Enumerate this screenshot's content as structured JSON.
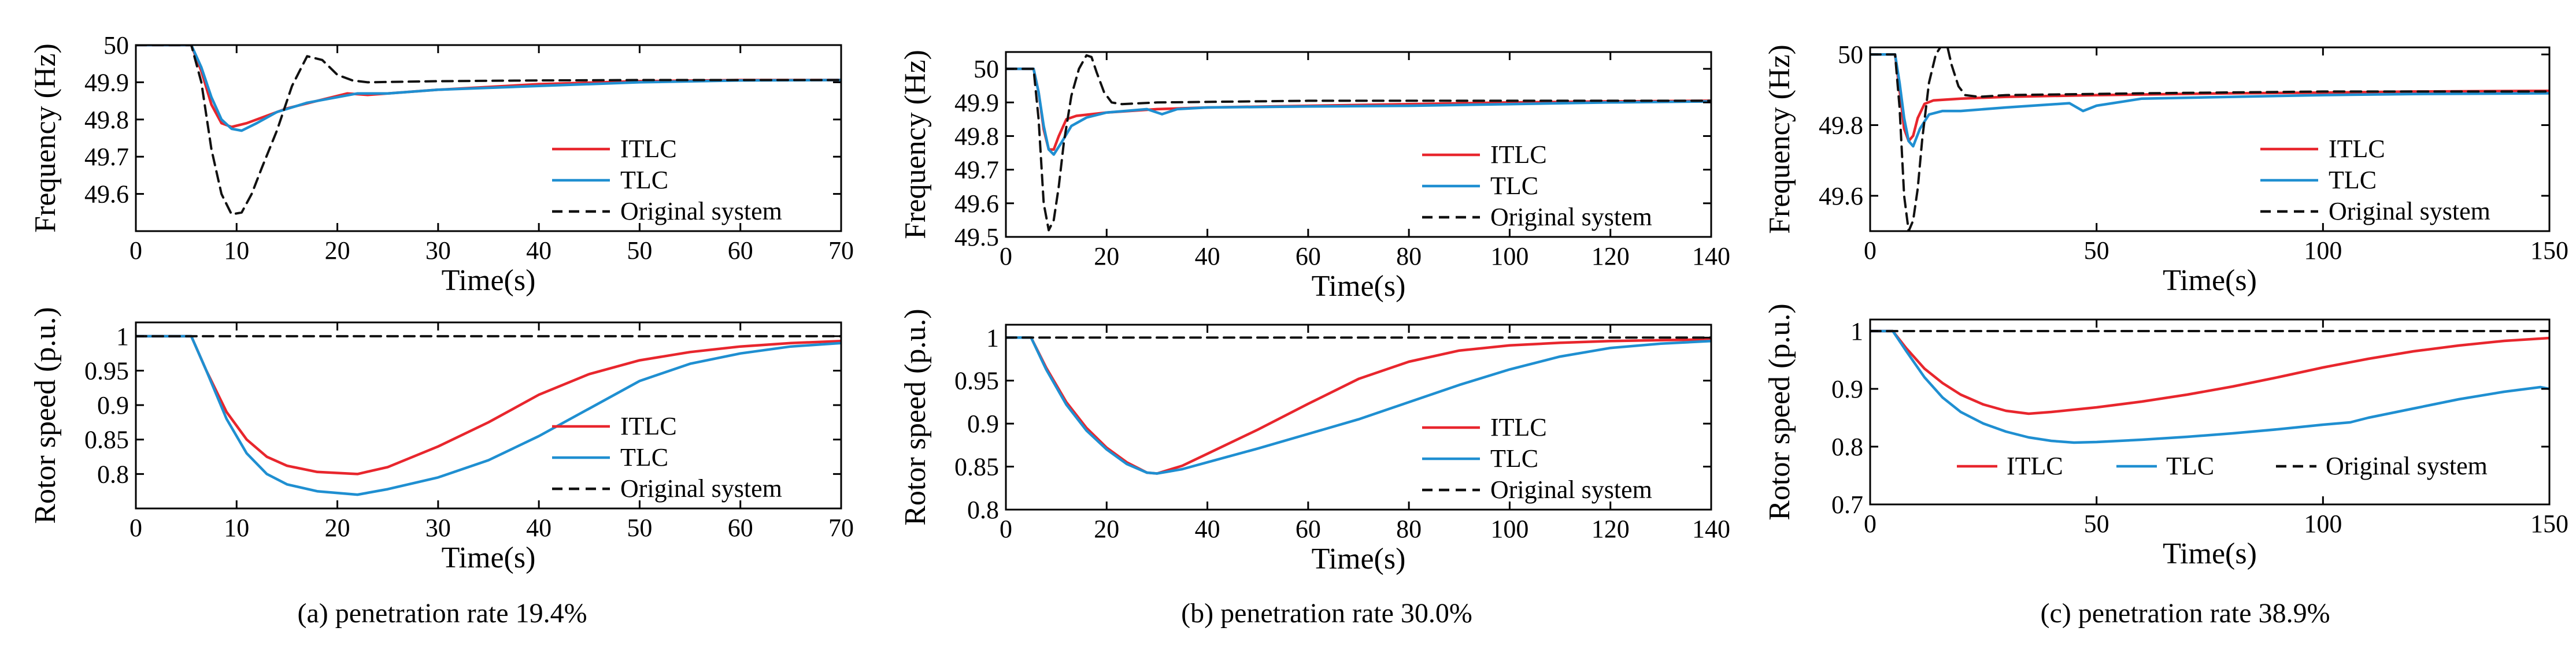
{
  "figure": {
    "captions": [
      "(a) penetration rate 19.4%",
      "(b) penetration rate 30.0%",
      "(c) penetration rate 38.9%"
    ],
    "colors": {
      "ITLC": "#e8262d",
      "TLC": "#1f8fd1",
      "Original system": "#111111"
    }
  },
  "chart_data": [
    {
      "id": "a-frequency",
      "type": "line",
      "xlabel": "Time(s)",
      "ylabel": "Frequency (Hz)",
      "xlim": [
        0,
        70
      ],
      "ylim": [
        49.5,
        50.0
      ],
      "xticks": [
        0,
        10,
        20,
        30,
        40,
        50,
        60,
        70
      ],
      "yticks": [
        49.6,
        49.7,
        49.8,
        49.9,
        50
      ],
      "legend": "right-inside-lower",
      "series": [
        {
          "name": "ITLC",
          "style": "solid",
          "color": "#e8262d",
          "x": [
            0,
            5.5,
            6.5,
            7.5,
            8.5,
            9.5,
            11,
            13,
            15,
            18,
            21,
            23,
            25,
            30,
            40,
            50,
            60,
            70
          ],
          "y": [
            50,
            50,
            49.93,
            49.84,
            49.79,
            49.78,
            49.79,
            49.81,
            49.83,
            49.85,
            49.87,
            49.866,
            49.87,
            49.88,
            49.895,
            49.903,
            49.906,
            49.906
          ]
        },
        {
          "name": "TLC",
          "style": "solid",
          "color": "#1f8fd1",
          "x": [
            0,
            5.5,
            6.5,
            7.5,
            8.5,
            9.5,
            10.5,
            12,
            14,
            17,
            20,
            22,
            25,
            30,
            40,
            50,
            60,
            70
          ],
          "y": [
            50,
            50,
            49.94,
            49.86,
            49.8,
            49.775,
            49.77,
            49.79,
            49.82,
            49.845,
            49.86,
            49.87,
            49.87,
            49.88,
            49.89,
            49.9,
            49.905,
            49.906
          ]
        },
        {
          "name": "Original system",
          "style": "dashed",
          "color": "#111111",
          "x": [
            0,
            5.5,
            6.5,
            7.5,
            8.5,
            9.5,
            10.5,
            11.5,
            12.5,
            14,
            15.5,
            17,
            18.5,
            20,
            21.5,
            23,
            30,
            40,
            50,
            70
          ],
          "y": [
            50,
            50,
            49.9,
            49.72,
            49.6,
            49.545,
            49.55,
            49.6,
            49.67,
            49.77,
            49.89,
            49.97,
            49.96,
            49.92,
            49.905,
            49.9,
            49.903,
            49.905,
            49.906,
            49.906
          ]
        }
      ]
    },
    {
      "id": "a-rotor",
      "type": "line",
      "xlabel": "Time(s)",
      "ylabel": "Rotor speed (p.u.)",
      "xlim": [
        0,
        70
      ],
      "ylim": [
        0.75,
        1.02
      ],
      "xticks": [
        0,
        10,
        20,
        30,
        40,
        50,
        60,
        70
      ],
      "yticks": [
        0.8,
        0.85,
        0.9,
        0.95,
        1
      ],
      "legend": "right-inside-lower",
      "series": [
        {
          "name": "ITLC",
          "style": "solid",
          "color": "#e8262d",
          "x": [
            0,
            5.5,
            7,
            9,
            11,
            13,
            15,
            18,
            22,
            25,
            30,
            35,
            40,
            45,
            50,
            55,
            60,
            65,
            70
          ],
          "y": [
            1,
            1,
            0.95,
            0.89,
            0.85,
            0.825,
            0.812,
            0.803,
            0.8,
            0.81,
            0.84,
            0.875,
            0.915,
            0.945,
            0.965,
            0.977,
            0.985,
            0.99,
            0.993
          ]
        },
        {
          "name": "TLC",
          "style": "solid",
          "color": "#1f8fd1",
          "x": [
            0,
            5.5,
            7,
            9,
            11,
            13,
            15,
            18,
            22,
            25,
            30,
            35,
            40,
            45,
            50,
            55,
            60,
            65,
            70
          ],
          "y": [
            1,
            1,
            0.95,
            0.88,
            0.83,
            0.8,
            0.785,
            0.775,
            0.77,
            0.778,
            0.795,
            0.82,
            0.855,
            0.895,
            0.935,
            0.96,
            0.975,
            0.985,
            0.99
          ]
        },
        {
          "name": "Original system",
          "style": "dashed",
          "color": "#111111",
          "x": [
            0,
            70
          ],
          "y": [
            1,
            1
          ]
        }
      ]
    },
    {
      "id": "b-frequency",
      "type": "line",
      "xlabel": "Time(s)",
      "ylabel": "Frequency (Hz)",
      "xlim": [
        0,
        140
      ],
      "ylim": [
        49.5,
        50.05
      ],
      "xticks": [
        0,
        20,
        40,
        60,
        80,
        100,
        120,
        140
      ],
      "yticks": [
        49.5,
        49.6,
        49.7,
        49.8,
        49.9,
        50
      ],
      "legend": "right-inside-lower",
      "series": [
        {
          "name": "ITLC",
          "style": "solid",
          "color": "#e8262d",
          "x": [
            0,
            5.5,
            6.5,
            7.5,
            8.5,
            9.5,
            10.5,
            12,
            14,
            20,
            30,
            40,
            60,
            80,
            100,
            120,
            140
          ],
          "y": [
            50,
            50,
            49.93,
            49.82,
            49.76,
            49.76,
            49.8,
            49.85,
            49.86,
            49.87,
            49.88,
            49.885,
            49.89,
            49.895,
            49.9,
            49.903,
            49.905
          ]
        },
        {
          "name": "TLC",
          "style": "solid",
          "color": "#1f8fd1",
          "x": [
            0,
            5.5,
            6.5,
            7.5,
            8.5,
            9.5,
            11,
            13,
            16,
            20,
            28,
            31,
            34,
            40,
            60,
            80,
            100,
            120,
            140
          ],
          "y": [
            50,
            50,
            49.93,
            49.83,
            49.76,
            49.745,
            49.78,
            49.83,
            49.855,
            49.87,
            49.88,
            49.865,
            49.88,
            49.885,
            49.888,
            49.89,
            49.895,
            49.9,
            49.903
          ]
        },
        {
          "name": "Original system",
          "style": "dashed",
          "color": "#111111",
          "x": [
            0,
            5.5,
            6.5,
            7.5,
            8.5,
            9.5,
            10.5,
            11.5,
            13,
            14.5,
            16,
            17,
            18,
            19.5,
            21,
            23,
            30,
            60,
            100,
            140
          ],
          "y": [
            50,
            50,
            49.85,
            49.6,
            49.52,
            49.55,
            49.65,
            49.78,
            49.92,
            50.0,
            50.04,
            50.035,
            49.99,
            49.93,
            49.9,
            49.895,
            49.9,
            49.905,
            49.905,
            49.905
          ]
        }
      ]
    },
    {
      "id": "b-rotor",
      "type": "line",
      "xlabel": "Time(s)",
      "ylabel": "Rotor speed (p.u.)",
      "xlim": [
        0,
        140
      ],
      "ylim": [
        0.8,
        1.015
      ],
      "xticks": [
        0,
        20,
        40,
        60,
        80,
        100,
        120,
        140
      ],
      "yticks": [
        0.8,
        0.85,
        0.9,
        0.95,
        1
      ],
      "legend": "right-inside-lower",
      "series": [
        {
          "name": "ITLC",
          "style": "solid",
          "color": "#e8262d",
          "x": [
            0,
            5,
            8,
            12,
            16,
            20,
            24,
            28,
            30,
            35,
            40,
            50,
            60,
            70,
            80,
            90,
            100,
            110,
            120,
            130,
            140
          ],
          "y": [
            1,
            1,
            0.965,
            0.925,
            0.895,
            0.872,
            0.855,
            0.843,
            0.842,
            0.851,
            0.865,
            0.893,
            0.923,
            0.952,
            0.972,
            0.985,
            0.991,
            0.994,
            0.996,
            0.997,
            0.998
          ]
        },
        {
          "name": "TLC",
          "style": "solid",
          "color": "#1f8fd1",
          "x": [
            0,
            5,
            8,
            12,
            16,
            20,
            24,
            28,
            30,
            35,
            40,
            50,
            60,
            70,
            80,
            90,
            100,
            110,
            120,
            130,
            140
          ],
          "y": [
            1,
            1,
            0.963,
            0.922,
            0.892,
            0.87,
            0.853,
            0.843,
            0.842,
            0.847,
            0.855,
            0.871,
            0.888,
            0.905,
            0.925,
            0.945,
            0.963,
            0.978,
            0.988,
            0.993,
            0.996
          ]
        },
        {
          "name": "Original system",
          "style": "dashed",
          "color": "#111111",
          "x": [
            0,
            140
          ],
          "y": [
            1,
            1
          ]
        }
      ]
    },
    {
      "id": "c-frequency",
      "type": "line",
      "xlabel": "Time(s)",
      "ylabel": "Frequency (Hz)",
      "xlim": [
        0,
        150
      ],
      "ylim": [
        49.5,
        50.02
      ],
      "xticks": [
        0,
        50,
        100,
        150
      ],
      "yticks": [
        49.6,
        49.8,
        50
      ],
      "legend": "right-inside-lower",
      "series": [
        {
          "name": "ITLC",
          "style": "solid",
          "color": "#e8262d",
          "x": [
            0,
            5.5,
            6.5,
            7.5,
            8.5,
            9.5,
            10.5,
            12,
            14,
            20,
            30,
            50,
            80,
            100,
            120,
            150
          ],
          "y": [
            50,
            50,
            49.9,
            49.79,
            49.755,
            49.77,
            49.82,
            49.86,
            49.87,
            49.875,
            49.88,
            49.885,
            49.89,
            49.892,
            49.895,
            49.897
          ]
        },
        {
          "name": "TLC",
          "style": "solid",
          "color": "#1f8fd1",
          "x": [
            0,
            5.5,
            6.5,
            7.5,
            8.5,
            9.5,
            11,
            13,
            16,
            20,
            30,
            44,
            47,
            50,
            60,
            80,
            100,
            120,
            150
          ],
          "y": [
            50,
            50,
            49.92,
            49.82,
            49.755,
            49.74,
            49.79,
            49.83,
            49.84,
            49.84,
            49.85,
            49.862,
            49.84,
            49.855,
            49.875,
            49.88,
            49.885,
            49.888,
            49.89
          ]
        },
        {
          "name": "Original system",
          "style": "dashed",
          "color": "#111111",
          "x": [
            0,
            5.5,
            6.5,
            7.5,
            8.5,
            9.5,
            10.5,
            11.5,
            13,
            14.5,
            16,
            17,
            18,
            19.5,
            21,
            24,
            30,
            60,
            100,
            150
          ],
          "y": [
            50,
            50,
            49.85,
            49.6,
            49.5,
            49.53,
            49.62,
            49.76,
            49.92,
            50.0,
            50.03,
            50.025,
            49.97,
            49.91,
            49.885,
            49.88,
            49.885,
            49.89,
            49.895,
            49.895
          ]
        }
      ]
    },
    {
      "id": "c-rotor",
      "type": "line",
      "xlabel": "Time(s)",
      "ylabel": "Rotor speed (p.u.)",
      "xlim": [
        0,
        150
      ],
      "ylim": [
        0.7,
        1.02
      ],
      "xticks": [
        0,
        50,
        100,
        150
      ],
      "yticks": [
        0.7,
        0.8,
        0.9,
        1
      ],
      "legend": "bottom-inside-horizontal",
      "series": [
        {
          "name": "ITLC",
          "style": "solid",
          "color": "#e8262d",
          "x": [
            0,
            5,
            8,
            12,
            16,
            20,
            25,
            30,
            35,
            40,
            50,
            60,
            70,
            80,
            90,
            100,
            110,
            120,
            130,
            140,
            150
          ],
          "y": [
            1,
            1,
            0.97,
            0.935,
            0.91,
            0.89,
            0.873,
            0.862,
            0.857,
            0.86,
            0.868,
            0.878,
            0.89,
            0.904,
            0.92,
            0.937,
            0.952,
            0.965,
            0.975,
            0.983,
            0.988
          ]
        },
        {
          "name": "TLC",
          "style": "solid",
          "color": "#1f8fd1",
          "x": [
            0,
            5,
            8,
            12,
            16,
            20,
            25,
            30,
            35,
            40,
            45,
            50,
            60,
            70,
            80,
            90,
            100,
            106,
            110,
            120,
            130,
            140,
            148,
            150
          ],
          "y": [
            1,
            1,
            0.965,
            0.92,
            0.885,
            0.86,
            0.84,
            0.826,
            0.816,
            0.81,
            0.807,
            0.808,
            0.812,
            0.817,
            0.823,
            0.83,
            0.838,
            0.842,
            0.85,
            0.866,
            0.882,
            0.895,
            0.903,
            0.9
          ]
        },
        {
          "name": "Original system",
          "style": "dashed",
          "color": "#111111",
          "x": [
            0,
            150
          ],
          "y": [
            1,
            1
          ]
        }
      ]
    }
  ]
}
